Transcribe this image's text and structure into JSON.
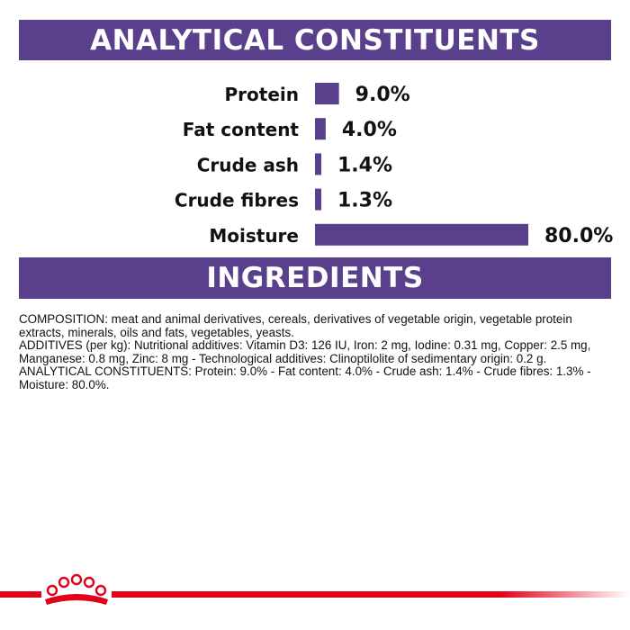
{
  "header": {
    "analytical_title": "ANALYTICAL CONSTITUENTS"
  },
  "chart_data": {
    "type": "bar",
    "orientation": "horizontal",
    "categories": [
      "Protein",
      "Fat content",
      "Crude ash",
      "Crude fibres",
      "Moisture"
    ],
    "values": [
      9.0,
      4.0,
      1.4,
      1.3,
      80.0
    ],
    "value_labels": [
      "9.0%",
      "4.0%",
      "1.4%",
      "1.3%",
      "80.0%"
    ],
    "unit": "%",
    "xlim": [
      0,
      80
    ],
    "bar_color": "#5a3f8c",
    "grid": false
  },
  "ingredients": {
    "title": "INGREDIENTS",
    "composition": "COMPOSITION: meat and animal derivatives, cereals, derivatives of vegetable origin, vegetable protein extracts, minerals, oils and fats, vegetables, yeasts.",
    "additives": "ADDITIVES (per kg): Nutritional additives: Vitamin D3: 126 IU, Iron: 2 mg, Iodine: 0.31 mg, Copper: 2.5 mg, Manganese: 0.8 mg, Zinc: 8 mg - Technological additives: Clinoptilolite of sedimentary origin: 0.2 g.",
    "analytical": "ANALYTICAL CONSTITUENTS: Protein: 9.0% - Fat content: 4.0% - Crude ash: 1.4% - Crude fibres: 1.3% - Moisture: 80.0%."
  },
  "footer": {
    "logo_icon": "royal-canin-crown-icon",
    "stripe_color": "#e2001a"
  }
}
